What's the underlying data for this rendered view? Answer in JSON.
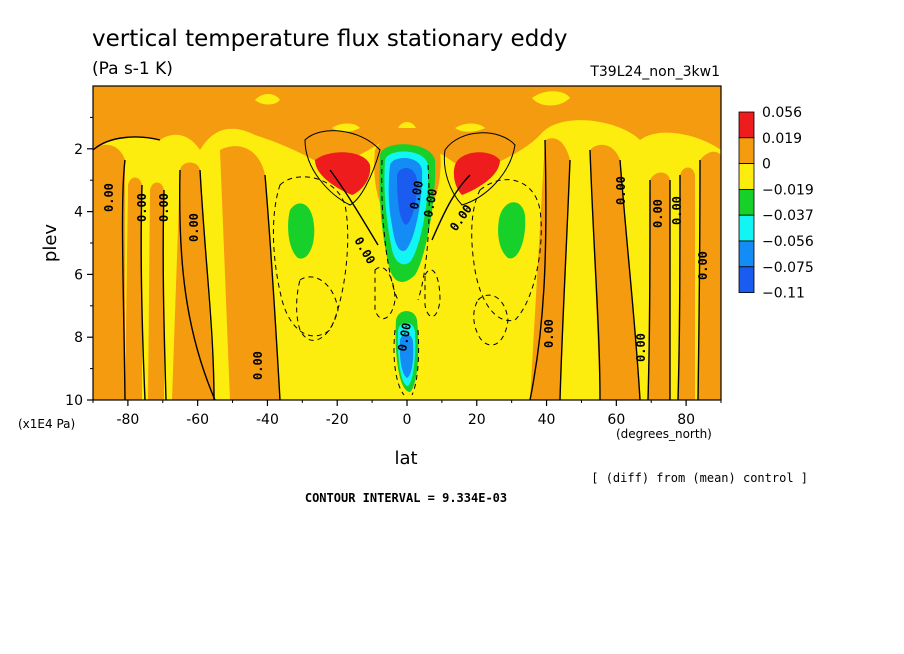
{
  "chart_data": {
    "type": "contour",
    "title": "vertical temperature flux stationary eddy",
    "units": "(Pa s-1 K)",
    "experiment": "T39L24_non_3kw1",
    "xlabel": "lat",
    "xunits": "(degrees_north)",
    "ylabel": "plev",
    "yunits": "(x1E4 Pa)",
    "xlim": [
      -90,
      90
    ],
    "ylim": [
      10,
      0
    ],
    "x_ticks": [
      -80,
      -60,
      -40,
      -20,
      0,
      20,
      40,
      60,
      80
    ],
    "y_ticks": [
      2,
      4,
      6,
      8,
      10
    ],
    "contour_interval_text": "CONTOUR INTERVAL = 9.334E-03",
    "comparison_note": "[ (diff) from (mean) control ]",
    "colorbar": {
      "labels": [
        "0.056",
        "0.019",
        "0",
        "−0.019",
        "−0.037",
        "−0.056",
        "−0.075",
        "−0.11"
      ],
      "colors": [
        "#ee1c1c",
        "#f59b0f",
        "#fced0e",
        "#17d12a",
        "#12f5f2",
        "#138cf5",
        "#1a5cef"
      ]
    },
    "features": [
      {
        "name": "positive-maximum-nh",
        "lat": 16,
        "plev": 2.7,
        "level": "0.019 to 0.056"
      },
      {
        "name": "positive-maximum-sh",
        "lat": -17,
        "plev": 2.7,
        "level": "0.019 to 0.056"
      },
      {
        "name": "negative-minimum-upper-equatorial",
        "lat": 0,
        "plev": 3.8,
        "level": "below -0.075"
      },
      {
        "name": "negative-minimum-lower-equatorial",
        "lat": 0,
        "plev": 8.7,
        "level": "-0.075 to -0.056"
      },
      {
        "name": "negative-midlat-nh",
        "lat": 29,
        "plev": 5.0,
        "level": "-0.037 to -0.019"
      },
      {
        "name": "negative-midlat-sh",
        "lat": -30,
        "plev": 5.0,
        "level": "-0.037 to -0.019"
      }
    ],
    "contour_labels": [
      "0.00",
      "0.00",
      "0.00",
      "0.00",
      "0.00",
      "0.00",
      "0.00",
      "0.00",
      "0.00",
      "0.00",
      "0.00",
      "0.00",
      "0.00",
      "0.00",
      "0.00",
      "0.00"
    ]
  }
}
